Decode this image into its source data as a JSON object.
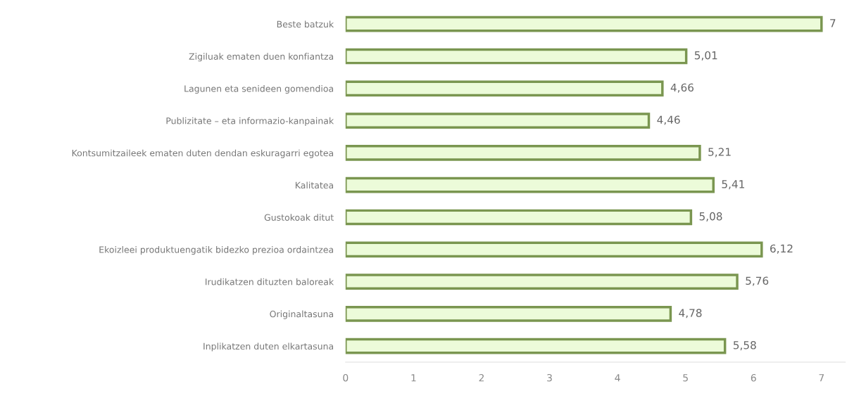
{
  "chart_data": {
    "type": "bar",
    "orientation": "horizontal",
    "categories": [
      "Beste batzuk",
      "Zigiluak ematen duen konfiantza",
      "Lagunen eta senideen gomendioa",
      "Publizitate – eta informazio-kanpainak",
      "Kontsumitzaileek ematen duten dendan eskuragarri egotea",
      "Kalitatea",
      "Gustokoak ditut",
      "Ekoizleei produktuengatik bidezko prezioa ordaintzea",
      "Irudikatzen dituzten baloreak",
      "Originaltasuna",
      "Inplikatzen duten elkartasuna"
    ],
    "values": [
      7,
      5.01,
      4.66,
      4.46,
      5.21,
      5.41,
      5.08,
      6.12,
      5.76,
      4.78,
      5.58
    ],
    "value_labels": [
      "7",
      "5,01",
      "4,66",
      "4,46",
      "5,21",
      "5,41",
      "5,08",
      "6,12",
      "5,76",
      "4,78",
      "5,58"
    ],
    "color": "#ecfbd9",
    "xlim": [
      0,
      7.35
    ],
    "xticks": [
      0,
      1,
      2,
      3,
      4,
      5,
      6,
      7
    ],
    "grid": false
  }
}
